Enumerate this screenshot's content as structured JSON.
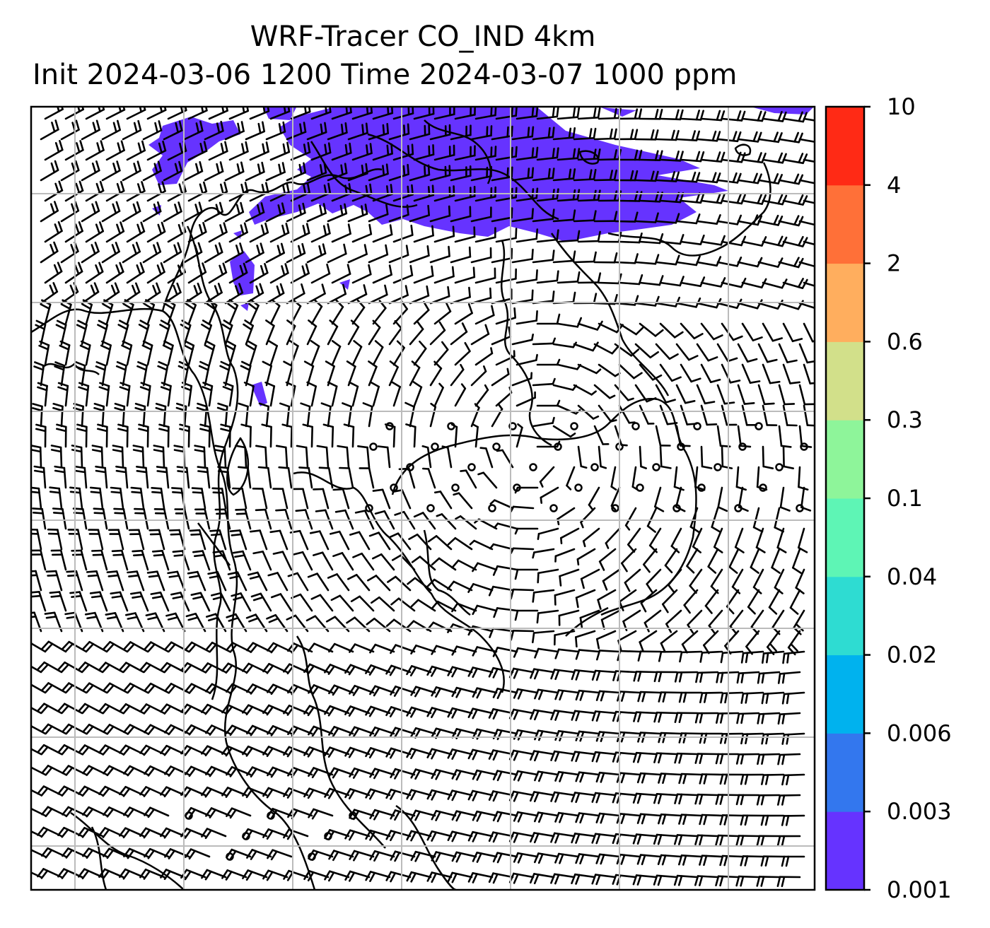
{
  "title": {
    "line1": "WRF-Tracer CO_IND 4km",
    "line2": "Init 2024-03-06 1200 Time 2024-03-07 1000 ppm"
  },
  "colorbar": {
    "levels": [
      "0.001",
      "0.003",
      "0.006",
      "0.02",
      "0.04",
      "0.1",
      "0.3",
      "0.6",
      "2",
      "4",
      "10"
    ],
    "colors": [
      "#6633ff",
      "#3377ee",
      "#00b2ee",
      "#2edcd2",
      "#5ef5b5",
      "#8ef59a",
      "#d2e08a",
      "#ffae5e",
      "#ff7038",
      "#ff2a15"
    ]
  },
  "map": {
    "tracer_color": "#6633ff",
    "gridline_color": "#bbbbbb",
    "barb_color": "#000000"
  }
}
